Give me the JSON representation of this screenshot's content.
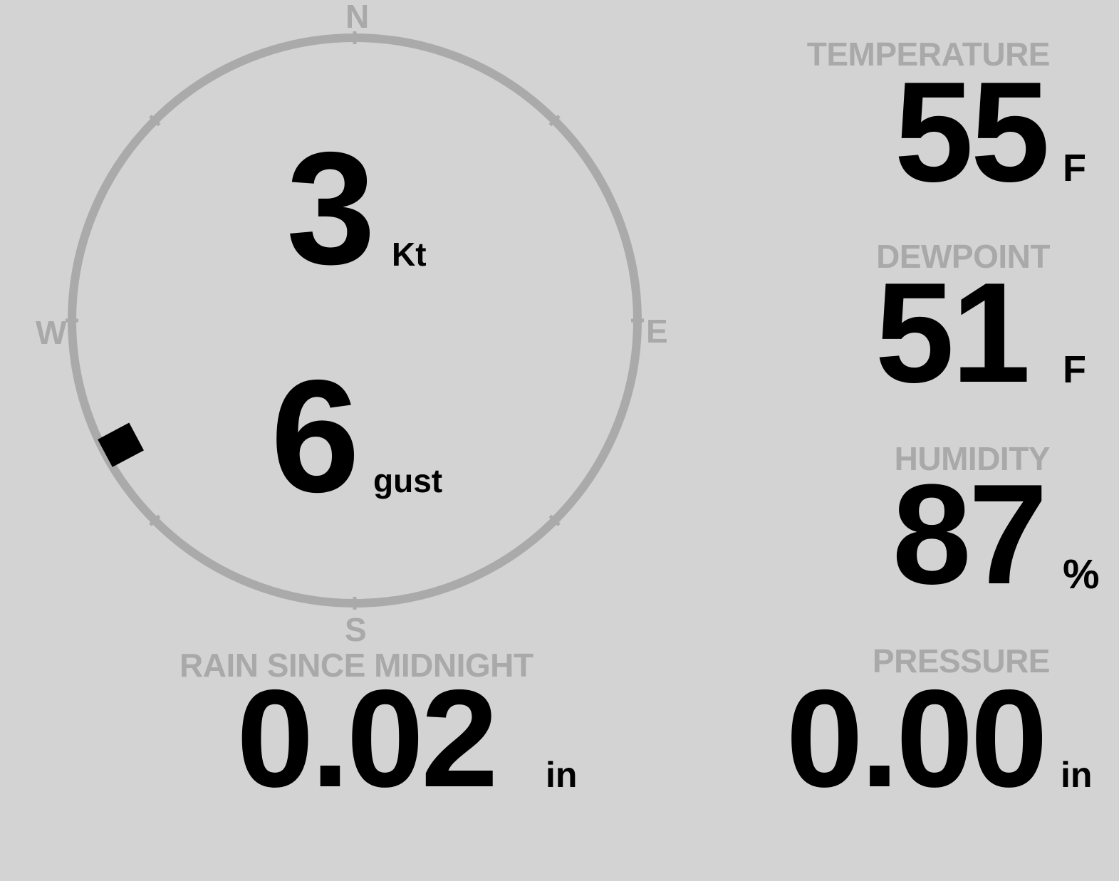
{
  "wind": {
    "speed": "3",
    "speed_unit": "Kt",
    "gust": "6",
    "gust_label": "gust",
    "direction_deg": 242,
    "compass": {
      "n": "N",
      "e": "E",
      "s": "S",
      "w": "W"
    }
  },
  "temperature": {
    "label": "TEMPERATURE",
    "value": "55",
    "unit": "F"
  },
  "dewpoint": {
    "label": "DEWPOINT",
    "value": "51",
    "unit": "F"
  },
  "humidity": {
    "label": "HUMIDITY",
    "value": "87",
    "unit": "%"
  },
  "rain": {
    "label": "RAIN SINCE MIDNIGHT",
    "value": "0.02",
    "unit": "in"
  },
  "pressure": {
    "label": "PRESSURE",
    "value": "0.00",
    "unit": "in"
  },
  "colors": {
    "background": "#d3d3d3",
    "label": "#a9a9a9",
    "value": "#000000",
    "dial": "#aaaaaa"
  }
}
